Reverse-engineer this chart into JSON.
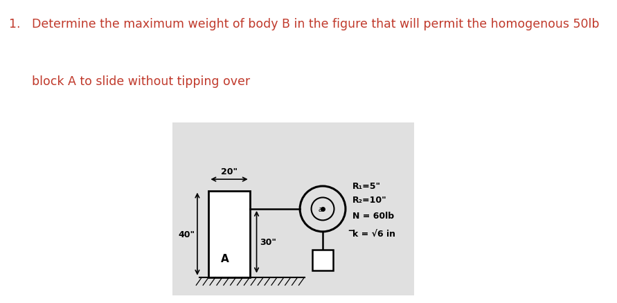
{
  "title_line1": "1.   Determine the maximum weight of body B in the figure that will permit the homogenous 50lb",
  "title_line2": "      block A to slide without tipping over",
  "title_color": "#c0392b",
  "title_fontsize": 12.5,
  "drawing_bg": "#c8c8c8",
  "drawing_inner_bg": "#e0e0e0",
  "block_label": "A",
  "dim_top": "20\"",
  "dim_left": "40\"",
  "dim_mid_height": "30\"",
  "annotations_raw": [
    "R₁=5\"",
    "R₂=10\"",
    "N = 60lb",
    "̅k = √6 in"
  ]
}
